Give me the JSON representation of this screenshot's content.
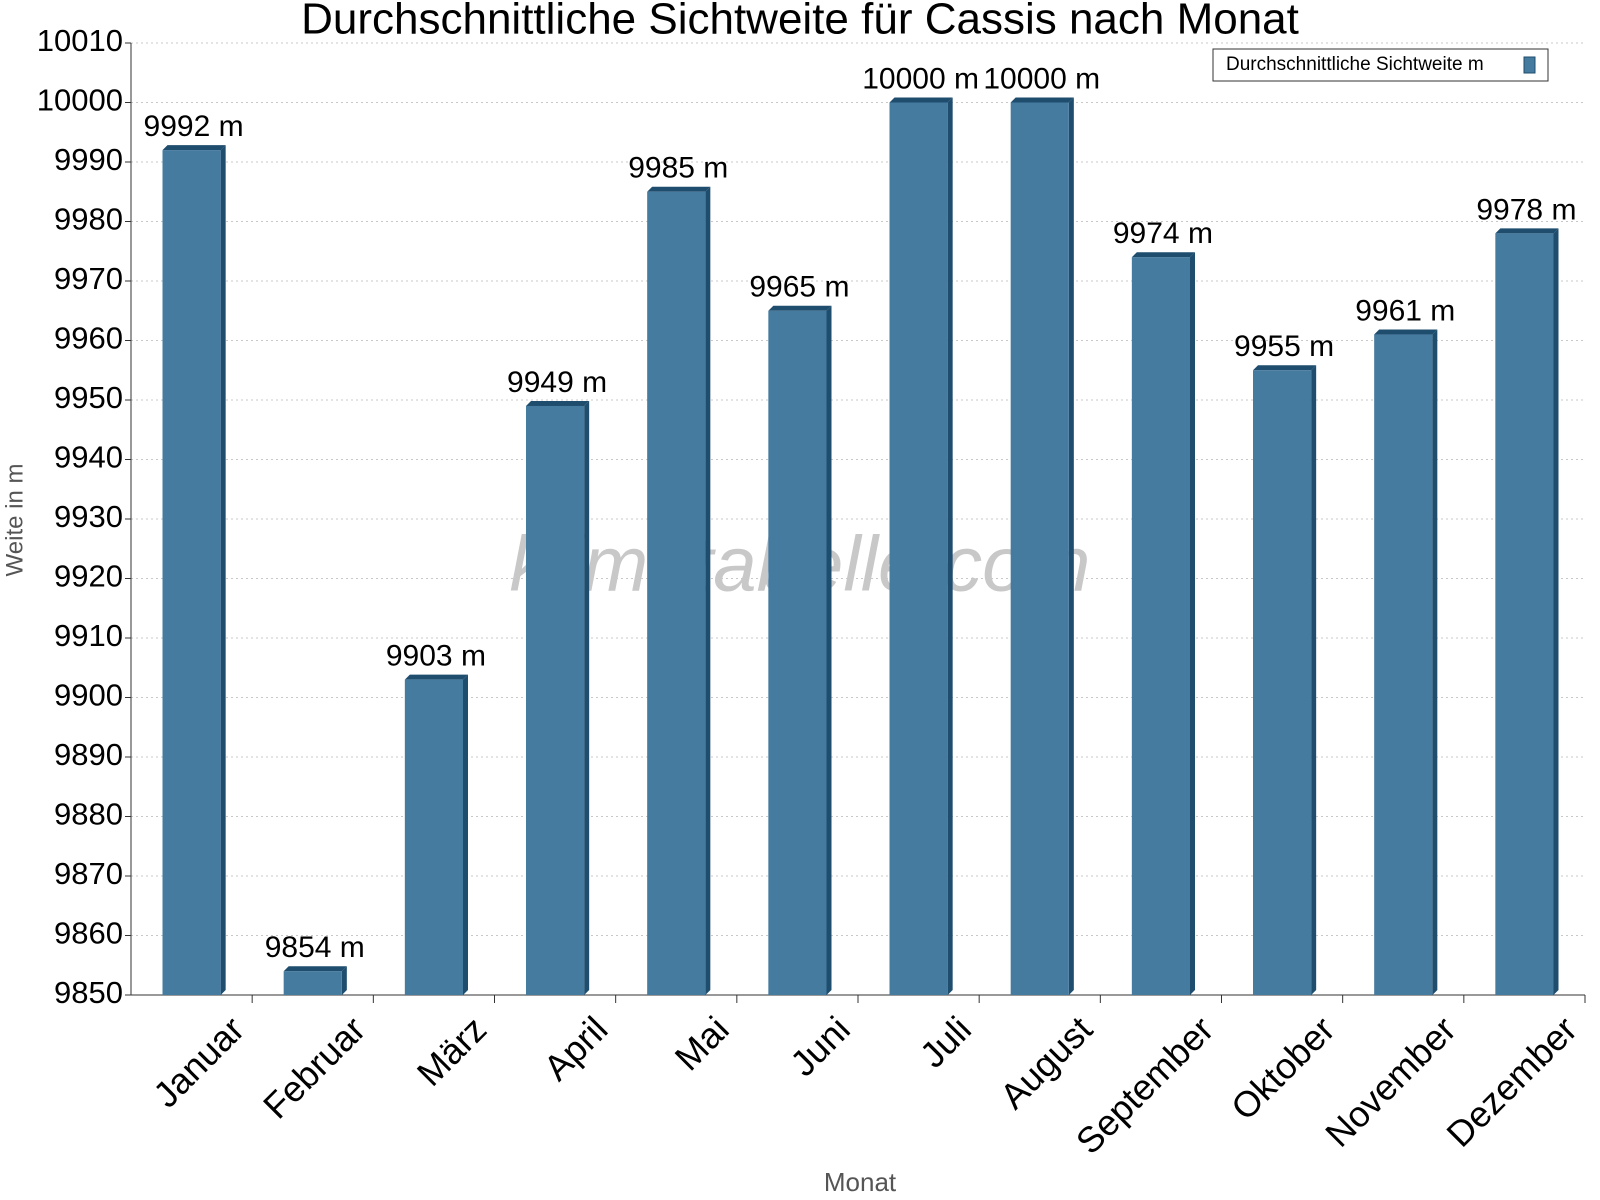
{
  "chart_data": {
    "type": "bar",
    "title": "Durchschnittliche Sichtweite für Cassis nach Monat",
    "x_label": "Monat",
    "y_label": "Weite in m",
    "watermark": "klimatabelle.com",
    "categories": [
      "Januar",
      "Februar",
      "März",
      "April",
      "Mai",
      "Juni",
      "Juli",
      "August",
      "September",
      "Oktober",
      "November",
      "Dezember"
    ],
    "series": [
      {
        "name": "Durchschnittliche Sichtweite m",
        "color": "#467ba0",
        "values": [
          9992,
          9854,
          9903,
          9949,
          9985,
          9965,
          10000,
          10000,
          9974,
          9955,
          9961,
          9978
        ],
        "value_labels": [
          "9992 m",
          "9854 m",
          "9903 m",
          "9949 m",
          "9985 m",
          "9965 m",
          "10000 m",
          "10000 m",
          "9974 m",
          "9955 m",
          "9961 m",
          "9978 m"
        ]
      }
    ],
    "ylim": [
      9850,
      10010
    ],
    "yticks": [
      9850,
      9860,
      9870,
      9880,
      9890,
      9900,
      9910,
      9920,
      9930,
      9940,
      9950,
      9960,
      9970,
      9980,
      9990,
      10000,
      10010
    ],
    "grid": true,
    "legend": "top-right"
  }
}
